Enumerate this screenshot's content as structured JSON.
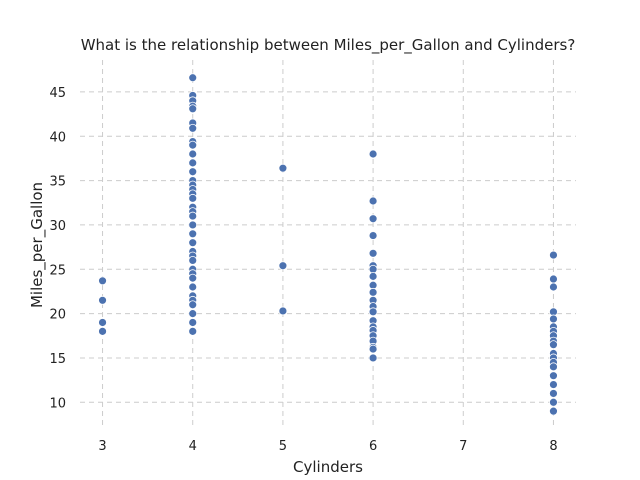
{
  "chart_data": {
    "type": "scatter",
    "title": "What is the relationship between Miles_per_Gallon and Cylinders?",
    "xlabel": "Cylinders",
    "ylabel": "Miles_per_Gallon",
    "xlim": [
      2.75,
      8.25
    ],
    "ylim": [
      7.1,
      48.6
    ],
    "xticks": [
      3,
      4,
      5,
      6,
      7,
      8
    ],
    "yticks": [
      10,
      15,
      20,
      25,
      30,
      35,
      40,
      45
    ],
    "grid": true,
    "point_color": "#4c72b0",
    "points": [
      {
        "x": 3,
        "y": 23.7
      },
      {
        "x": 3,
        "y": 21.5
      },
      {
        "x": 3,
        "y": 19.0
      },
      {
        "x": 3,
        "y": 18.0
      },
      {
        "x": 4,
        "y": 46.6
      },
      {
        "x": 4,
        "y": 44.6
      },
      {
        "x": 4,
        "y": 44.0
      },
      {
        "x": 4,
        "y": 43.4
      },
      {
        "x": 4,
        "y": 43.1
      },
      {
        "x": 4,
        "y": 41.5
      },
      {
        "x": 4,
        "y": 40.9
      },
      {
        "x": 4,
        "y": 39.4
      },
      {
        "x": 4,
        "y": 39.0
      },
      {
        "x": 4,
        "y": 38.0
      },
      {
        "x": 4,
        "y": 37.0
      },
      {
        "x": 4,
        "y": 36.0
      },
      {
        "x": 4,
        "y": 35.0
      },
      {
        "x": 4,
        "y": 34.5
      },
      {
        "x": 4,
        "y": 34.0
      },
      {
        "x": 4,
        "y": 33.5
      },
      {
        "x": 4,
        "y": 33.0
      },
      {
        "x": 4,
        "y": 32.0
      },
      {
        "x": 4,
        "y": 31.5
      },
      {
        "x": 4,
        "y": 31.0
      },
      {
        "x": 4,
        "y": 30.0
      },
      {
        "x": 4,
        "y": 29.0
      },
      {
        "x": 4,
        "y": 28.0
      },
      {
        "x": 4,
        "y": 27.0
      },
      {
        "x": 4,
        "y": 26.5
      },
      {
        "x": 4,
        "y": 26.0
      },
      {
        "x": 4,
        "y": 25.0
      },
      {
        "x": 4,
        "y": 24.5
      },
      {
        "x": 4,
        "y": 24.0
      },
      {
        "x": 4,
        "y": 23.0
      },
      {
        "x": 4,
        "y": 22.0
      },
      {
        "x": 4,
        "y": 21.5
      },
      {
        "x": 4,
        "y": 21.0
      },
      {
        "x": 4,
        "y": 20.0
      },
      {
        "x": 4,
        "y": 19.0
      },
      {
        "x": 4,
        "y": 18.0
      },
      {
        "x": 5,
        "y": 36.4
      },
      {
        "x": 5,
        "y": 25.4
      },
      {
        "x": 5,
        "y": 20.3
      },
      {
        "x": 6,
        "y": 38.0
      },
      {
        "x": 6,
        "y": 32.7
      },
      {
        "x": 6,
        "y": 30.7
      },
      {
        "x": 6,
        "y": 28.8
      },
      {
        "x": 6,
        "y": 26.8
      },
      {
        "x": 6,
        "y": 25.4
      },
      {
        "x": 6,
        "y": 25.0
      },
      {
        "x": 6,
        "y": 24.2
      },
      {
        "x": 6,
        "y": 23.2
      },
      {
        "x": 6,
        "y": 22.4
      },
      {
        "x": 6,
        "y": 21.5
      },
      {
        "x": 6,
        "y": 20.8
      },
      {
        "x": 6,
        "y": 20.2
      },
      {
        "x": 6,
        "y": 19.2
      },
      {
        "x": 6,
        "y": 18.5
      },
      {
        "x": 6,
        "y": 18.1
      },
      {
        "x": 6,
        "y": 17.5
      },
      {
        "x": 6,
        "y": 16.9
      },
      {
        "x": 6,
        "y": 16.2
      },
      {
        "x": 6,
        "y": 16.0
      },
      {
        "x": 6,
        "y": 15.0
      },
      {
        "x": 8,
        "y": 26.6
      },
      {
        "x": 8,
        "y": 23.9
      },
      {
        "x": 8,
        "y": 23.0
      },
      {
        "x": 8,
        "y": 20.2
      },
      {
        "x": 8,
        "y": 19.4
      },
      {
        "x": 8,
        "y": 18.5
      },
      {
        "x": 8,
        "y": 18.0
      },
      {
        "x": 8,
        "y": 17.5
      },
      {
        "x": 8,
        "y": 16.9
      },
      {
        "x": 8,
        "y": 16.5
      },
      {
        "x": 8,
        "y": 15.5
      },
      {
        "x": 8,
        "y": 15.0
      },
      {
        "x": 8,
        "y": 14.5
      },
      {
        "x": 8,
        "y": 14.0
      },
      {
        "x": 8,
        "y": 13.0
      },
      {
        "x": 8,
        "y": 12.0
      },
      {
        "x": 8,
        "y": 11.0
      },
      {
        "x": 8,
        "y": 10.0
      },
      {
        "x": 8,
        "y": 9.0
      }
    ]
  }
}
